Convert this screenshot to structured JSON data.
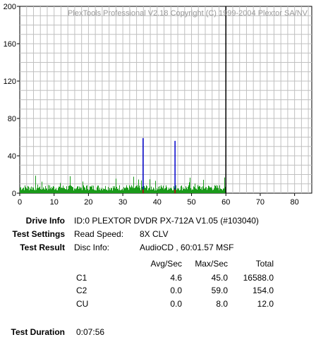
{
  "watermark": "PlexTools Professional V2.18 Copyright (C) 1999-2004 Plextor SA/NV",
  "chart_data": {
    "type": "bar",
    "title": "",
    "xlabel": "",
    "ylabel": "",
    "xlim": [
      0,
      85
    ],
    "ylim": [
      0,
      200
    ],
    "xticks": [
      0,
      10,
      20,
      30,
      40,
      50,
      60,
      70,
      80
    ],
    "yticks": [
      0,
      40,
      80,
      120,
      160,
      200
    ],
    "grid": true,
    "end_marker_x": 60,
    "series": [
      {
        "key": "c1",
        "color": "#1a9a1a",
        "x_range": [
          0,
          60
        ],
        "typical": 7,
        "max": 45.0
      },
      {
        "key": "c2",
        "color": "#0000cc",
        "spikes": [
          {
            "x": 35.9,
            "y": 59
          },
          {
            "x": 45.2,
            "y": 56
          }
        ]
      },
      {
        "key": "cu",
        "color": "#cc0000",
        "spikes": [
          {
            "x": 35.9,
            "y": 4
          },
          {
            "x": 45.2,
            "y": 4
          }
        ]
      }
    ]
  },
  "drive_info": {
    "label": "Drive Info",
    "value": "ID:0 PLEXTOR DVDR PX-712A V1.05 (#103040)"
  },
  "test_settings": {
    "label": "Test Settings",
    "key": "Read Speed:",
    "value": "8X CLV"
  },
  "test_result": {
    "label": "Test Result",
    "key": "Disc Info:",
    "value": "AudioCD , 60:01.57 MSF"
  },
  "stats": {
    "headers": [
      "Avg/Sec",
      "Max/Sec",
      "Total"
    ],
    "rows": [
      {
        "name": "C1",
        "avg": "4.6",
        "max": "45.0",
        "total": "16588.0"
      },
      {
        "name": "C2",
        "avg": "0.0",
        "max": "59.0",
        "total": "154.0"
      },
      {
        "name": "CU",
        "avg": "0.0",
        "max": "8.0",
        "total": "12.0"
      }
    ]
  },
  "test_duration": {
    "label": "Test Duration",
    "value": "0:07:56"
  },
  "colors": {
    "c1": "#1a9a1a",
    "c2": "#0000cc",
    "cu": "#cc0000",
    "grid": "#c0c0c0",
    "marker": "#000000"
  }
}
